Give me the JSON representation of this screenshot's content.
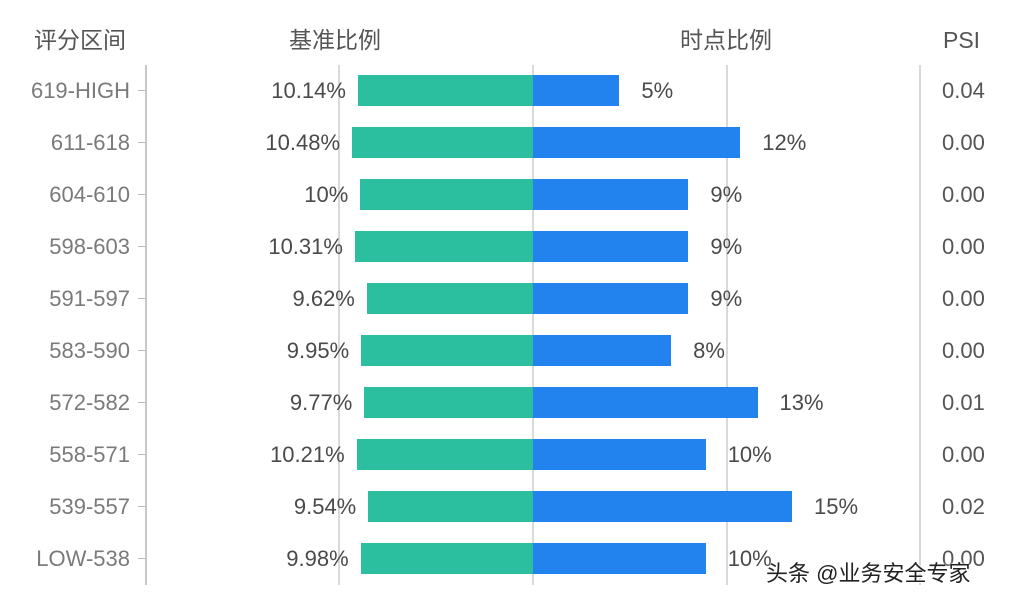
{
  "headers": {
    "category": "评分区间",
    "baseline": "基准比例",
    "current": "时点比例",
    "psi": "PSI"
  },
  "colors": {
    "baseline_bar": "#2bbfa0",
    "current_bar": "#2283ee",
    "text": "#4a4a4a",
    "gridline": "#d9d9d9"
  },
  "rows": [
    {
      "range": "619-HIGH",
      "baseline": "10.14%",
      "current": "5%",
      "psi": "0.04"
    },
    {
      "range": "611-618",
      "baseline": "10.48%",
      "current": "12%",
      "psi": "0.00"
    },
    {
      "range": "604-610",
      "baseline": "10%",
      "current": "9%",
      "psi": "0.00"
    },
    {
      "range": "598-603",
      "baseline": "10.31%",
      "current": "9%",
      "psi": "0.00"
    },
    {
      "range": "591-597",
      "baseline": "9.62%",
      "current": "9%",
      "psi": "0.00"
    },
    {
      "range": "583-590",
      "baseline": "9.95%",
      "current": "8%",
      "psi": "0.00"
    },
    {
      "range": "572-582",
      "baseline": "9.77%",
      "current": "13%",
      "psi": "0.01"
    },
    {
      "range": "558-571",
      "baseline": "10.21%",
      "current": "10%",
      "psi": "0.00"
    },
    {
      "range": "539-557",
      "baseline": "9.54%",
      "current": "15%",
      "psi": "0.02"
    },
    {
      "range": "LOW-538",
      "baseline": "9.98%",
      "current": "10%",
      "psi": "0.00"
    }
  ],
  "watermark": "头条 @业务安全专家",
  "chart_data": {
    "type": "bar",
    "orientation": "horizontal-butterfly",
    "title": "",
    "xlabel": "",
    "ylabel": "评分区间",
    "categories": [
      "619-HIGH",
      "611-618",
      "604-610",
      "598-603",
      "591-597",
      "583-590",
      "572-582",
      "558-571",
      "539-557",
      "LOW-538"
    ],
    "series": [
      {
        "name": "基准比例",
        "direction": "left",
        "color": "#2bbfa0",
        "values": [
          10.14,
          10.48,
          10.0,
          10.31,
          9.62,
          9.95,
          9.77,
          10.21,
          9.54,
          9.98
        ]
      },
      {
        "name": "时点比例",
        "direction": "right",
        "color": "#2283ee",
        "values": [
          5,
          12,
          9,
          9,
          9,
          8,
          13,
          10,
          15,
          10
        ]
      }
    ],
    "psi": [
      0.04,
      0.0,
      0.0,
      0.0,
      0.0,
      0.0,
      0.01,
      0.0,
      0.02,
      0.0
    ],
    "value_unit": "%",
    "grid": true,
    "legend": "none (column headers used as series labels)"
  }
}
